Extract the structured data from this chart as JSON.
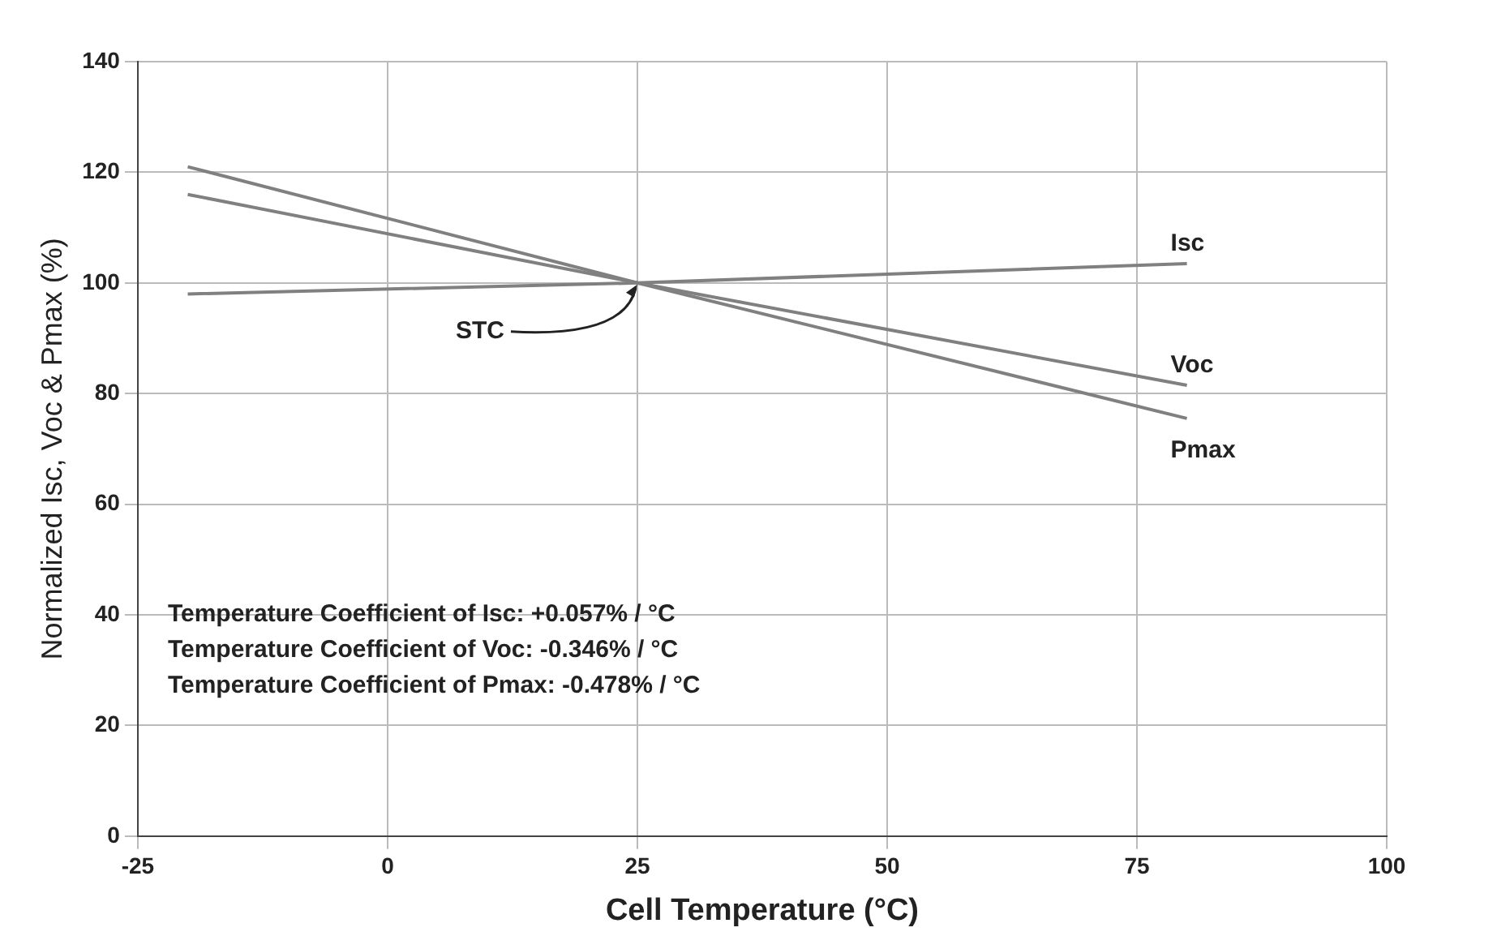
{
  "chart_data": {
    "type": "line",
    "xlabel": "Cell Temperature (°C)",
    "ylabel": "Normalized Isc, Voc & Pmax (%)",
    "x": [
      -20,
      25,
      80
    ],
    "series": [
      {
        "name": "Isc",
        "color": "#808080",
        "values": [
          98,
          100,
          103.5
        ]
      },
      {
        "name": "Voc",
        "color": "#808080",
        "values": [
          116,
          100,
          81.5
        ]
      },
      {
        "name": "Pmax",
        "color": "#808080",
        "values": [
          121,
          100,
          75.5
        ]
      }
    ],
    "xlim": [
      -25,
      100
    ],
    "xticks": [
      -25,
      0,
      25,
      50,
      75,
      100
    ],
    "ylim": [
      0,
      140
    ],
    "yticks": [
      0,
      20,
      40,
      60,
      80,
      100,
      120,
      140
    ],
    "grid": true,
    "legend": false,
    "marker": "none",
    "line_style": "solid",
    "annotations": [
      {
        "text": "STC",
        "x": 25,
        "y": 100
      },
      "Temperature Coefficient of Isc: +0.057% / °C",
      "Temperature Coefficient of Voc: -0.346% / °C",
      "Temperature Coefficient of Pmax: -0.478% / °C"
    ]
  }
}
